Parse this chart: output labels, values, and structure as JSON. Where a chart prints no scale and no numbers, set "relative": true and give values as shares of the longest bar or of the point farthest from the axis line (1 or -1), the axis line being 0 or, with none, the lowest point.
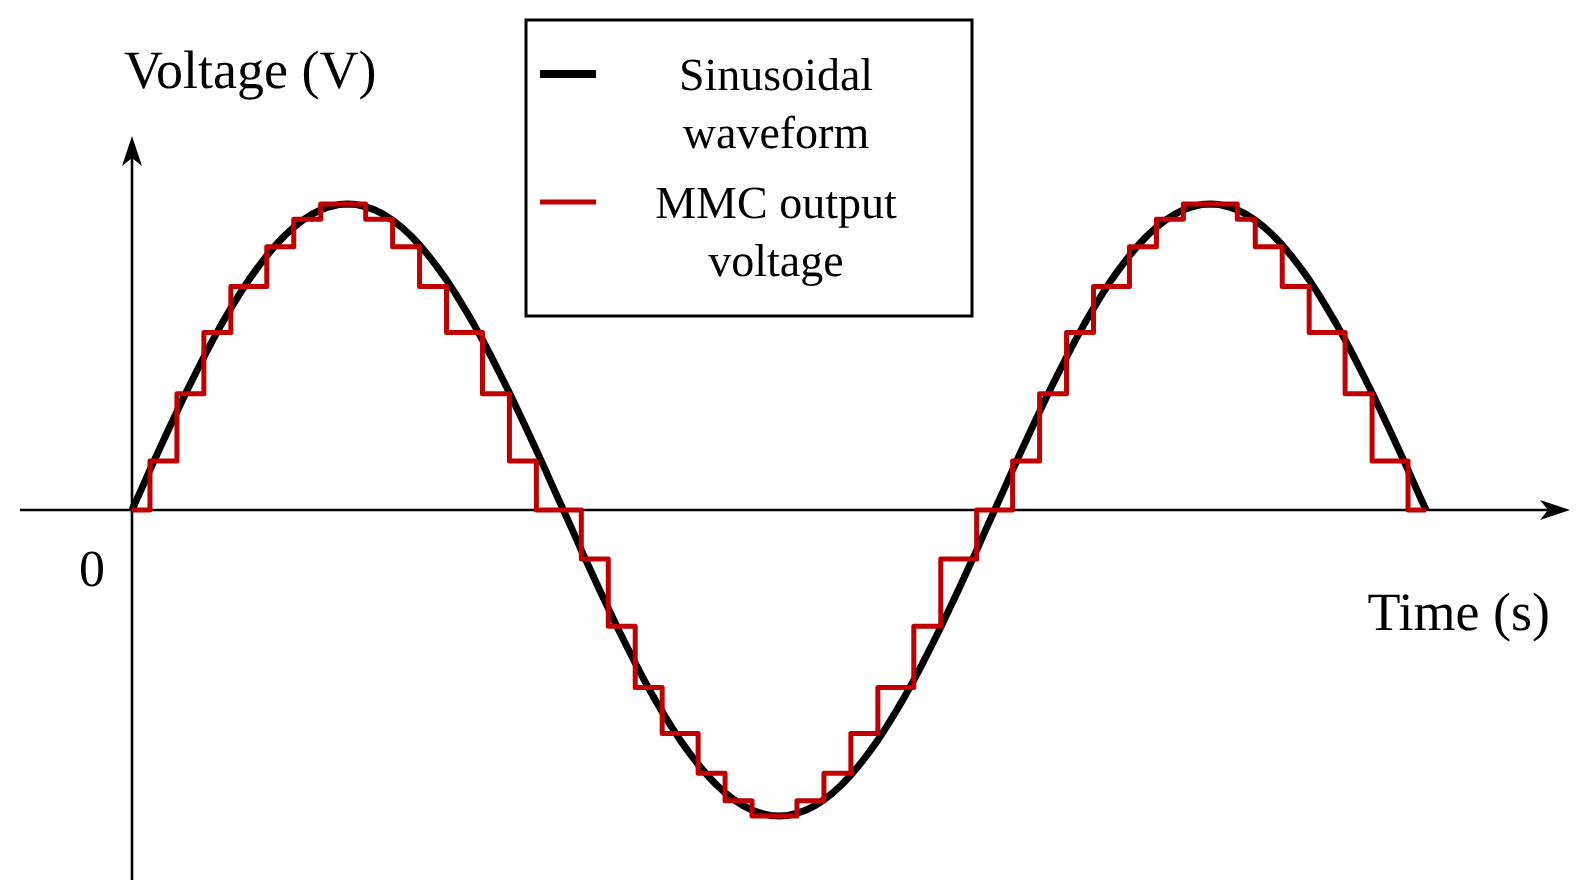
{
  "chart_data": {
    "type": "line",
    "relative": true,
    "xlabel": "Time (s)",
    "ylabel": "Voltage (V)",
    "legend": "top",
    "annotations": [
      "0"
    ],
    "categories": [
      null,
      null,
      null,
      null,
      null,
      null,
      null,
      null,
      null,
      null,
      null,
      null,
      null,
      null,
      null,
      null,
      null,
      null,
      null,
      null,
      null,
      null,
      null,
      null,
      null,
      null,
      null,
      null,
      null,
      null,
      null,
      null,
      null,
      null,
      null,
      null,
      null,
      null,
      null,
      null,
      null,
      null,
      null,
      null,
      null,
      null,
      null,
      null,
      null,
      null,
      null,
      null,
      null,
      null,
      null,
      null,
      null,
      null,
      null,
      null,
      null,
      null,
      null,
      null,
      null,
      null,
      null,
      null,
      null,
      null,
      null,
      null,
      null,
      null,
      null,
      null,
      null,
      null,
      null,
      null,
      null,
      null,
      null,
      null,
      null,
      null,
      null,
      null,
      null,
      null,
      null,
      null,
      null,
      null,
      null,
      null,
      null,
      null,
      null,
      null,
      null,
      null,
      null,
      null,
      null,
      null,
      null,
      null,
      null,
      null,
      null,
      null,
      null,
      null,
      null,
      null,
      null,
      null,
      null,
      null,
      null,
      null,
      null,
      null,
      null,
      null,
      null,
      null,
      null,
      null,
      null,
      null,
      null,
      null,
      null,
      null,
      null,
      null,
      null,
      null,
      null,
      null,
      null,
      null,
      null
    ],
    "series": [
      {
        "name": "Sinusoidal waveform",
        "color": "#000000",
        "values": [
          0,
          0.065,
          0.131,
          0.195,
          0.259,
          0.321,
          0.383,
          0.442,
          0.5,
          0.556,
          0.609,
          0.659,
          0.707,
          0.752,
          0.793,
          0.831,
          0.866,
          0.897,
          0.924,
          0.947,
          0.966,
          0.981,
          0.991,
          0.998,
          1,
          0.998,
          0.991,
          0.981,
          0.966,
          0.947,
          0.924,
          0.897,
          0.866,
          0.831,
          0.793,
          0.752,
          0.707,
          0.659,
          0.609,
          0.556,
          0.5,
          0.442,
          0.383,
          0.321,
          0.259,
          0.195,
          0.131,
          0.065,
          0,
          -0.065,
          -0.131,
          -0.195,
          -0.259,
          -0.321,
          -0.383,
          -0.442,
          -0.5,
          -0.556,
          -0.609,
          -0.659,
          -0.707,
          -0.752,
          -0.793,
          -0.831,
          -0.866,
          -0.897,
          -0.924,
          -0.947,
          -0.966,
          -0.981,
          -0.991,
          -0.998,
          -1,
          -0.998,
          -0.991,
          -0.981,
          -0.966,
          -0.947,
          -0.924,
          -0.897,
          -0.866,
          -0.831,
          -0.793,
          -0.752,
          -0.707,
          -0.659,
          -0.609,
          -0.556,
          -0.5,
          -0.442,
          -0.383,
          -0.321,
          -0.259,
          -0.195,
          -0.131,
          -0.065,
          0,
          0.065,
          0.131,
          0.195,
          0.259,
          0.321,
          0.383,
          0.442,
          0.5,
          0.556,
          0.609,
          0.659,
          0.707,
          0.752,
          0.793,
          0.831,
          0.866,
          0.897,
          0.924,
          0.947,
          0.966,
          0.981,
          0.991,
          0.998,
          1,
          0.998,
          0.991,
          0.981,
          0.966,
          0.947,
          0.924,
          0.897,
          0.866,
          0.831,
          0.793,
          0.752,
          0.707,
          0.659,
          0.609,
          0.556,
          0.5,
          0.442,
          0.383,
          0.321,
          0.259,
          0.195,
          0.131,
          0.065,
          0
        ]
      },
      {
        "name": "MMC output voltage",
        "type": "step",
        "color": "#c00000",
        "values": [
          0,
          0,
          0.16,
          0.16,
          0.16,
          0.38,
          0.38,
          0.38,
          0.58,
          0.58,
          0.58,
          0.73,
          0.73,
          0.73,
          0.73,
          0.86,
          0.86,
          0.86,
          0.95,
          0.95,
          0.95,
          1,
          1,
          1,
          1,
          1,
          0.95,
          0.95,
          0.95,
          0.86,
          0.86,
          0.86,
          0.73,
          0.73,
          0.73,
          0.58,
          0.58,
          0.58,
          0.58,
          0.38,
          0.38,
          0.38,
          0.16,
          0.16,
          0.16,
          0,
          0,
          0,
          0,
          0,
          -0.16,
          -0.16,
          -0.16,
          -0.38,
          -0.38,
          -0.38,
          -0.58,
          -0.58,
          -0.58,
          -0.73,
          -0.73,
          -0.73,
          -0.73,
          -0.86,
          -0.86,
          -0.86,
          -0.95,
          -0.95,
          -0.95,
          -1,
          -1,
          -1,
          -1,
          -1,
          -0.95,
          -0.95,
          -0.95,
          -0.86,
          -0.86,
          -0.86,
          -0.73,
          -0.73,
          -0.73,
          -0.58,
          -0.58,
          -0.58,
          -0.58,
          -0.38,
          -0.38,
          -0.38,
          -0.16,
          -0.16,
          -0.16,
          -0.16,
          0,
          0,
          0,
          0,
          0.16,
          0.16,
          0.16,
          0.38,
          0.38,
          0.38,
          0.58,
          0.58,
          0.58,
          0.73,
          0.73,
          0.73,
          0.73,
          0.86,
          0.86,
          0.86,
          0.95,
          0.95,
          0.95,
          1,
          1,
          1,
          1,
          1,
          1,
          0.95,
          0.95,
          0.86,
          0.86,
          0.86,
          0.73,
          0.73,
          0.73,
          0.58,
          0.58,
          0.58,
          0.58,
          0.38,
          0.38,
          0.38,
          0.16,
          0.16,
          0.16,
          0.16,
          0,
          0,
          0
        ]
      }
    ]
  }
}
